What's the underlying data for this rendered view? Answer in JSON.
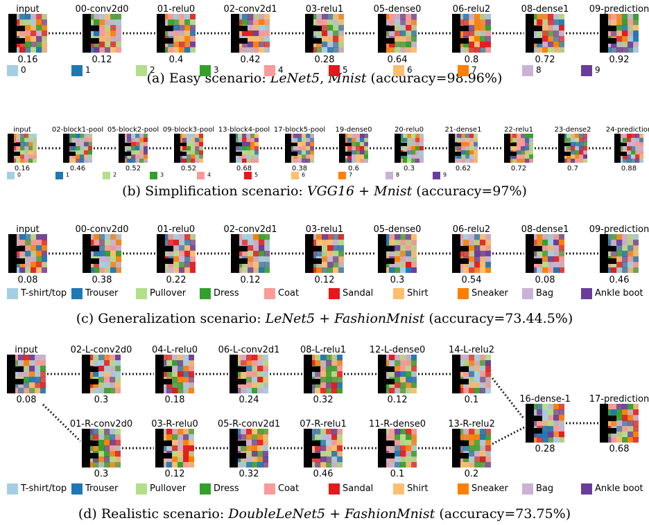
{
  "colors": {
    "0": "#a6cee3",
    "1": "#1f78b4",
    "2": "#b2df8a",
    "3": "#33a02c",
    "4": "#fb9a99",
    "5": "#e31a1c",
    "6": "#fdbf6f",
    "7": "#ff7f00",
    "8": "#cab2d6",
    "9": "#6a3d9a"
  },
  "legends": {
    "digits": [
      "0",
      "1",
      "2",
      "3",
      "4",
      "5",
      "6",
      "7",
      "8",
      "9"
    ],
    "fashion": [
      "T-shirt/top",
      "Trouser",
      "Pullover",
      "Dress",
      "Coat",
      "Sandal",
      "Shirt",
      "Sneaker",
      "Bag",
      "Ankle boot"
    ]
  },
  "panels": [
    {
      "id": "a",
      "caption": {
        "prefix": "(a) Easy scenario: ",
        "model": "LeNet5",
        "sep": ", ",
        "dataset": "Mnist",
        "suffix": " (accuracy=98.96%)"
      },
      "nodes": [
        {
          "label": "input",
          "value": "0.16"
        },
        {
          "label": "00-conv2d0",
          "value": "0.12"
        },
        {
          "label": "01-relu0",
          "value": "0.4"
        },
        {
          "label": "02-conv2d1",
          "value": "0.42"
        },
        {
          "label": "03-relu1",
          "value": "0.28"
        },
        {
          "label": "05-dense0",
          "value": "0.64"
        },
        {
          "label": "06-relu2",
          "value": "0.8"
        },
        {
          "label": "08-dense1",
          "value": "0.72"
        },
        {
          "label": "09-prediction",
          "value": "0.92"
        }
      ]
    },
    {
      "id": "b",
      "caption": {
        "prefix": "(b) Simplification scenario: ",
        "model": "VGG16",
        "sep": " + ",
        "dataset": "Mnist",
        "suffix": " (accuracy=97%)"
      },
      "nodes": [
        {
          "label": "input",
          "value": "0.16"
        },
        {
          "label": "02-block1-pool",
          "value": "0.46"
        },
        {
          "label": "05-block2-pool",
          "value": "0.52"
        },
        {
          "label": "09-block3-pool",
          "value": "0.52"
        },
        {
          "label": "13-block4-pool",
          "value": "0.68"
        },
        {
          "label": "17-block5-pool",
          "value": "0.38"
        },
        {
          "label": "19-dense0",
          "value": "0.6"
        },
        {
          "label": "20-relu0",
          "value": "0.3"
        },
        {
          "label": "21-dense1",
          "value": "0.62"
        },
        {
          "label": "22-relu1",
          "value": "0.72"
        },
        {
          "label": "23-dense2",
          "value": "0.7"
        },
        {
          "label": "24-prediction",
          "value": "0.88"
        }
      ]
    },
    {
      "id": "c",
      "caption": {
        "prefix": "(c) Generalization scenario: ",
        "model": "LeNet5",
        "sep": " + ",
        "dataset": "FashionMnist",
        "suffix": " (accuracy=73.44.5%)"
      },
      "nodes": [
        {
          "label": "input",
          "value": "0.08"
        },
        {
          "label": "00-conv2d0",
          "value": "0.38"
        },
        {
          "label": "01-relu0",
          "value": "0.22"
        },
        {
          "label": "02-conv2d1",
          "value": "0.12"
        },
        {
          "label": "03-relu1",
          "value": "0.12"
        },
        {
          "label": "05-dense0",
          "value": "0.3"
        },
        {
          "label": "06-relu2",
          "value": "0.54"
        },
        {
          "label": "08-dense1",
          "value": "0.08"
        },
        {
          "label": "09-prediction",
          "value": "0.46"
        }
      ]
    },
    {
      "id": "d",
      "caption": {
        "prefix": "(d) Realistic scenario: ",
        "model": "DoubleLeNet5",
        "sep": " + ",
        "dataset": "FashionMnist",
        "suffix": " (accuracy=73.75%)"
      },
      "nodes": [
        {
          "label": "input",
          "value": "0.08"
        },
        {
          "label": "02-L-conv2d0",
          "value": "0.3"
        },
        {
          "label": "04-L-relu0",
          "value": "0.18"
        },
        {
          "label": "06-L-conv2d1",
          "value": "0.24"
        },
        {
          "label": "08-L-relu1",
          "value": "0.32"
        },
        {
          "label": "12-L-dense0",
          "value": "0.12"
        },
        {
          "label": "14-L-relu2",
          "value": "0.1"
        },
        {
          "label": "01-R-conv2d0",
          "value": "0.3"
        },
        {
          "label": "03-R-relu0",
          "value": "0.12"
        },
        {
          "label": "05-R-conv2d1",
          "value": "0.32"
        },
        {
          "label": "07-R-relu1",
          "value": "0.46"
        },
        {
          "label": "11-R-dense0",
          "value": "0.1"
        },
        {
          "label": "13-R-relu2",
          "value": "0.2"
        },
        {
          "label": "16-dense-1",
          "value": "0.28"
        },
        {
          "label": "17-prediction",
          "value": "0.68"
        }
      ]
    }
  ]
}
